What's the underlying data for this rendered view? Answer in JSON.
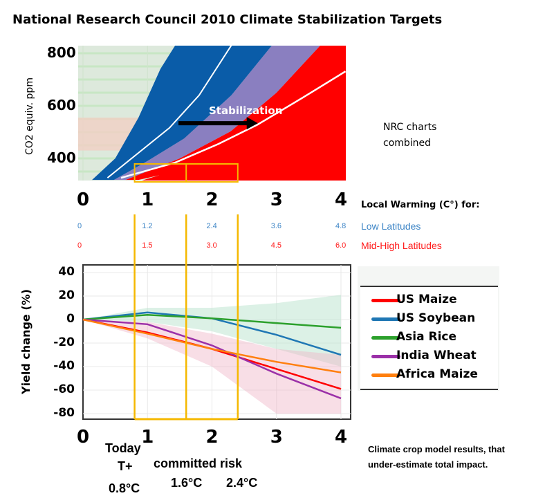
{
  "title": "National Research Council 2010 Climate Stabilization Targets",
  "chart_data": [
    {
      "type": "area",
      "ylabel": "CO2  equiv.  ppm",
      "yticks": [
        "800",
        "600",
        "400"
      ],
      "xticks": [
        "0",
        "1",
        "2",
        "3",
        "4"
      ],
      "xlim": [
        -0.07,
        4.07
      ],
      "ylim": [
        315,
        830
      ],
      "annotation": "Stabilization",
      "note": [
        "NRC charts",
        "combined"
      ],
      "colors": {
        "blue": "#0a5ca8",
        "purple": "#8a7fc0",
        "red": "#ff0000",
        "band": "#f1cfc4"
      },
      "bands": {
        "blue_left": [
          [
            0.14,
            318
          ],
          [
            0.5,
            400
          ],
          [
            0.86,
            555
          ],
          [
            1.2,
            740
          ],
          [
            1.43,
            830
          ]
        ],
        "blue_right": [
          [
            0.48,
            318
          ],
          [
            1.0,
            390
          ],
          [
            1.57,
            476
          ],
          [
            2.3,
            640
          ],
          [
            2.93,
            830
          ]
        ],
        "purple_right": [
          [
            0.66,
            318
          ],
          [
            1.5,
            400
          ],
          [
            2.29,
            503
          ],
          [
            3.0,
            650
          ],
          [
            3.68,
            830
          ]
        ],
        "red_lower": [
          [
            0.86,
            318
          ],
          [
            1.8,
            370
          ],
          [
            2.65,
            424
          ],
          [
            3.4,
            490
          ],
          [
            4.07,
            550
          ]
        ]
      },
      "lines": {
        "blue_center": [
          [
            0.38,
            326
          ],
          [
            1.34,
            516
          ],
          [
            1.8,
            640
          ],
          [
            2.3,
            830
          ]
        ],
        "red_center": [
          [
            0.59,
            326
          ],
          [
            1.43,
            384
          ],
          [
            2.1,
            455
          ],
          [
            2.71,
            529
          ],
          [
            3.4,
            630
          ],
          [
            4.07,
            731
          ]
        ]
      },
      "arrow": {
        "from": [
          1.48,
          534
        ],
        "to": [
          2.71,
          534
        ]
      },
      "band_ppm": [
        430,
        555
      ]
    },
    {
      "type": "table",
      "header": "Local Warming  (C°) for:",
      "rows": [
        {
          "name": "Low Latitudes",
          "color": "#3d85c6",
          "values": [
            "0",
            "1.2",
            "2.4",
            "3.6",
            "4.8"
          ]
        },
        {
          "name": "Mid-High Latitudes",
          "color": "#ff1a1a",
          "values": [
            "0",
            "1.5",
            "3.0",
            "4.5",
            "6.0"
          ]
        }
      ]
    },
    {
      "type": "line",
      "ylabel": "Yield change  (%)",
      "ylim": [
        -80,
        40
      ],
      "xlim": [
        0,
        4
      ],
      "yticks": [
        "40",
        "20",
        "0",
        "-20",
        "-40",
        "-60",
        "-80"
      ],
      "xticks": [
        "0",
        "1",
        "2",
        "3",
        "4"
      ],
      "x": [
        0,
        1,
        2,
        3,
        4
      ],
      "legend": "right",
      "series": [
        {
          "name": "US Maize",
          "color": "#ff0000",
          "values": [
            0,
            -11,
            -25,
            -42,
            -59
          ]
        },
        {
          "name": "US Soybean",
          "color": "#1f77b4",
          "values": [
            0,
            6,
            1,
            -13,
            -30
          ]
        },
        {
          "name": "Asia Rice",
          "color": "#2ca02c",
          "values": [
            0,
            4,
            1,
            -3,
            -7
          ]
        },
        {
          "name": "India Wheat",
          "color": "#9b30a8",
          "values": [
            0,
            -4,
            -22,
            -46,
            -67
          ]
        },
        {
          "name": "Africa Maize",
          "color": "#ff7f0e",
          "values": [
            0,
            -12,
            -25,
            -36,
            -45
          ]
        }
      ]
    }
  ],
  "markers": {
    "color": "#f5b800",
    "x": [
      0.8,
      1.6,
      2.4
    ]
  },
  "labels": {
    "today": "Today",
    "tplus": "T+",
    "today_temp": "0.8°C",
    "committed": "committed risk",
    "t1": "1.6°C",
    "t2": "2.4°C"
  },
  "footnote": [
    "Climate crop model results, that",
    "under-estimate total  impact."
  ]
}
